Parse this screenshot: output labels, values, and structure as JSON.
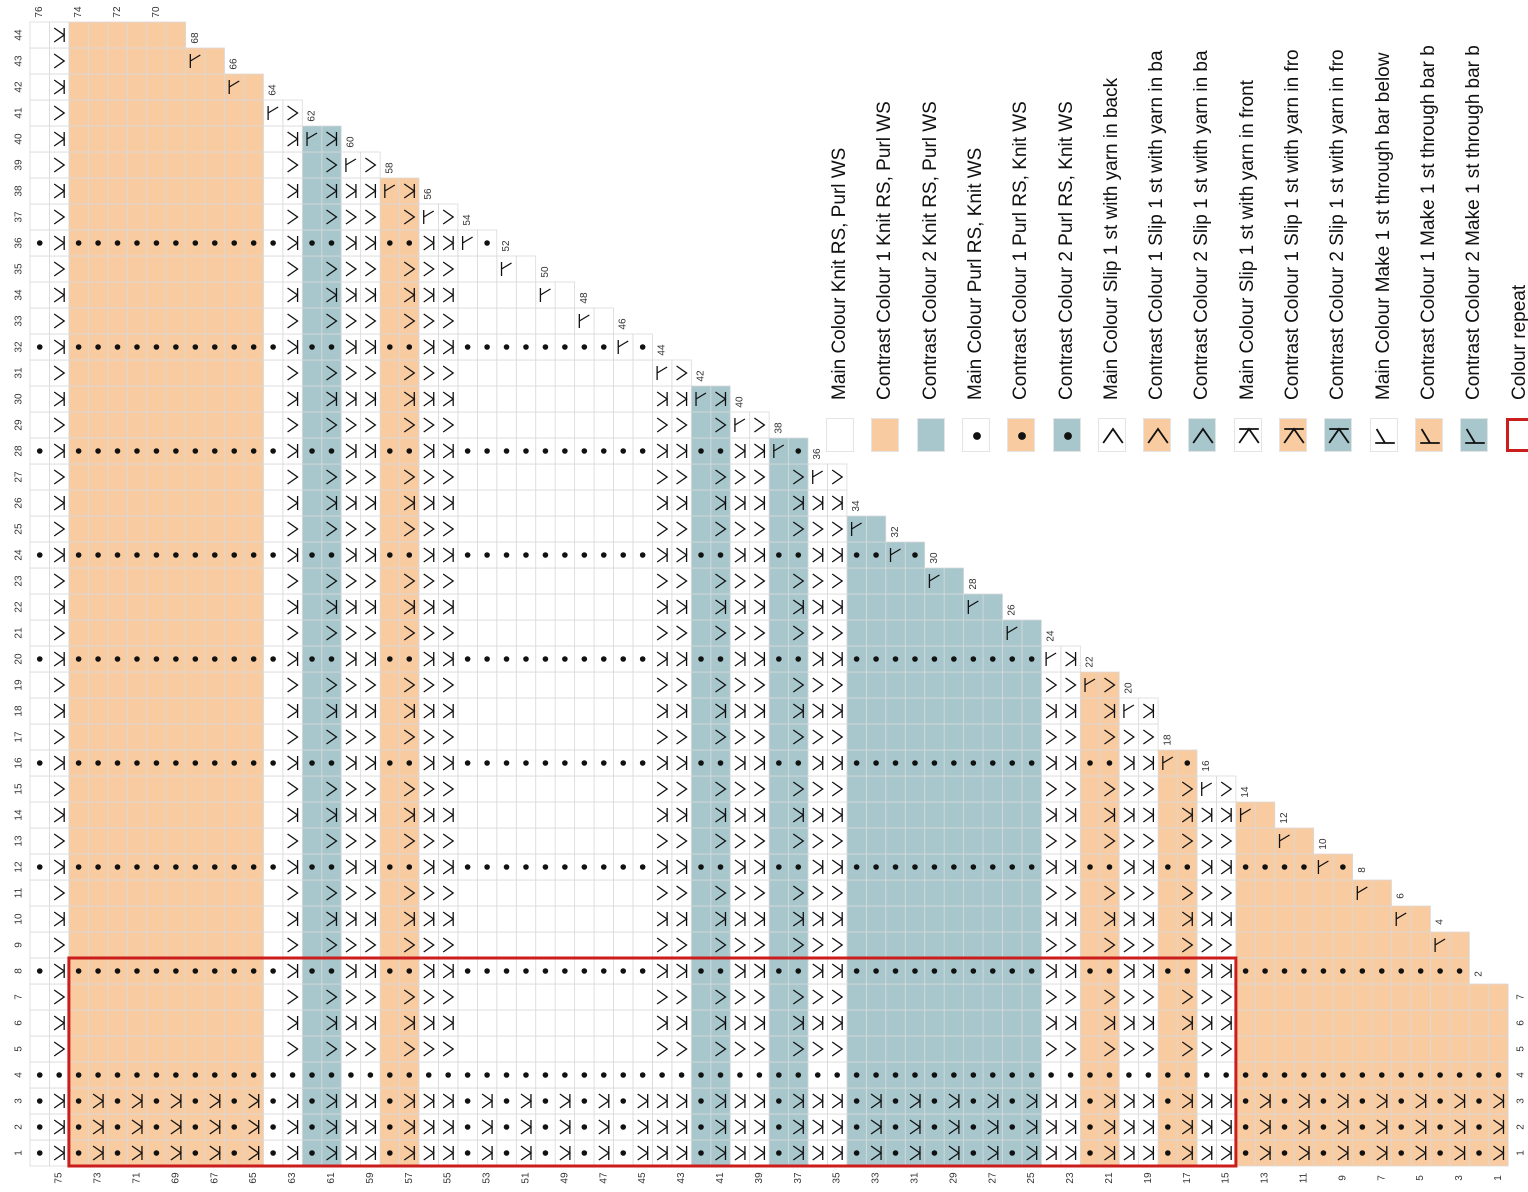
{
  "colors": {
    "main": "#ffffff",
    "cc1": "#f8cba1",
    "cc2": "#a7c7cd",
    "grid": "#d9d9d9",
    "repeat": "#cc1d1d",
    "ink": "#111111"
  },
  "legend": {
    "items": [
      {
        "symbol": "none",
        "fill": "main",
        "label": "Main Colour Knit RS, Purl WS"
      },
      {
        "symbol": "none",
        "fill": "cc1",
        "label": "Contrast Colour 1 Knit RS, Purl WS"
      },
      {
        "symbol": "none",
        "fill": "cc2",
        "label": "Contrast Colour 2 Knit RS, Purl WS"
      },
      {
        "symbol": "dot",
        "fill": "main",
        "label": "Main Colour Purl RS, Knit WS"
      },
      {
        "symbol": "dot",
        "fill": "cc1",
        "label": "Contrast Colour 1 Purl RS, Knit WS"
      },
      {
        "symbol": "dot",
        "fill": "cc2",
        "label": "Contrast Colour 2 Purl RS, Knit WS"
      },
      {
        "symbol": "slip-back",
        "fill": "main",
        "label": "Main Colour Slip 1 st with yarn in back"
      },
      {
        "symbol": "slip-back",
        "fill": "cc1",
        "label": "Contrast Colour 1 Slip 1 st with yarn in ba"
      },
      {
        "symbol": "slip-back",
        "fill": "cc2",
        "label": "Contrast Colour 2 Slip 1 st with yarn in ba"
      },
      {
        "symbol": "slip-front",
        "fill": "main",
        "label": "Main Colour Slip 1 st with yarn in front"
      },
      {
        "symbol": "slip-front",
        "fill": "cc1",
        "label": "Contrast Colour 1 Slip 1 st with yarn in fro"
      },
      {
        "symbol": "slip-front",
        "fill": "cc2",
        "label": "Contrast Colour 2 Slip 1 st with yarn in fro"
      },
      {
        "symbol": "make",
        "fill": "main",
        "label": "Main Colour Make 1 st through bar below"
      },
      {
        "symbol": "make",
        "fill": "cc1",
        "label": "Contrast Colour 1 Make 1 st through bar b"
      },
      {
        "symbol": "make",
        "fill": "cc2",
        "label": "Contrast Colour 2 Make 1 st through bar b"
      },
      {
        "symbol": "repeat",
        "fill": "main",
        "label": "Colour repeat"
      }
    ]
  },
  "chart_data": {
    "type": "knitting-chart",
    "stitch_columns": 76,
    "rows": 44,
    "shaping": "one stitch increased every other row (even rows), triangle widening to 76 sts at row 44",
    "row_numbers": [
      "1",
      "2",
      "3",
      "4",
      "5",
      "6",
      "7",
      "8",
      "9",
      "10",
      "11",
      "12",
      "13",
      "14",
      "15",
      "16",
      "17",
      "18",
      "19",
      "20",
      "21",
      "22",
      "23",
      "24",
      "25",
      "26",
      "27",
      "28",
      "29",
      "30",
      "31",
      "32",
      "33",
      "34",
      "35",
      "36",
      "37",
      "38",
      "39",
      "40",
      "41",
      "42",
      "43",
      "44"
    ],
    "stitch_numbers": [
      "1",
      "2",
      "3",
      "4",
      "5",
      "6",
      "7",
      "8",
      "9",
      "10",
      "11",
      "12",
      "13",
      "14",
      "15",
      "16",
      "17",
      "18",
      "19",
      "20",
      "21",
      "22",
      "23",
      "24",
      "25",
      "26",
      "27",
      "28",
      "29",
      "30",
      "31",
      "32",
      "33",
      "34",
      "35",
      "36",
      "37",
      "38",
      "39",
      "40",
      "41",
      "42",
      "43",
      "44",
      "45",
      "46",
      "47",
      "48",
      "49",
      "50",
      "51",
      "52",
      "53",
      "54",
      "55",
      "56",
      "57",
      "58",
      "59",
      "60",
      "61",
      "62",
      "63",
      "64",
      "65",
      "66",
      "67",
      "68",
      "69",
      "70",
      "71",
      "72",
      "73",
      "74",
      "75",
      "76"
    ],
    "colour_bands": [
      {
        "colour": "cc1",
        "stitches": [
          65,
          74
        ]
      },
      {
        "colour": "cc2",
        "stitches": [
          61,
          62
        ]
      },
      {
        "colour": "cc1",
        "stitches": [
          57,
          58
        ]
      },
      {
        "colour": "cc2",
        "stitches": [
          41,
          42
        ]
      },
      {
        "colour": "cc2",
        "stitches": [
          37,
          38
        ]
      },
      {
        "colour": "cc2",
        "stitches": [
          25,
          34
        ]
      },
      {
        "colour": "cc1",
        "stitches": [
          21,
          22
        ]
      },
      {
        "colour": "cc1",
        "stitches": [
          17,
          18
        ]
      },
      {
        "colour": "cc1",
        "stitches": [
          1,
          14
        ]
      }
    ],
    "garter_ridge_rows": [
      4,
      8,
      12,
      16,
      20,
      24,
      28,
      32,
      36
    ],
    "slip_stitch_columns": [
      75,
      63,
      60,
      59,
      56,
      55,
      44,
      43,
      40,
      39,
      36,
      35,
      24,
      23,
      20,
      19,
      16,
      15
    ],
    "repeat_box": {
      "stitches": [
        15,
        74
      ],
      "rows": [
        1,
        8
      ]
    }
  }
}
